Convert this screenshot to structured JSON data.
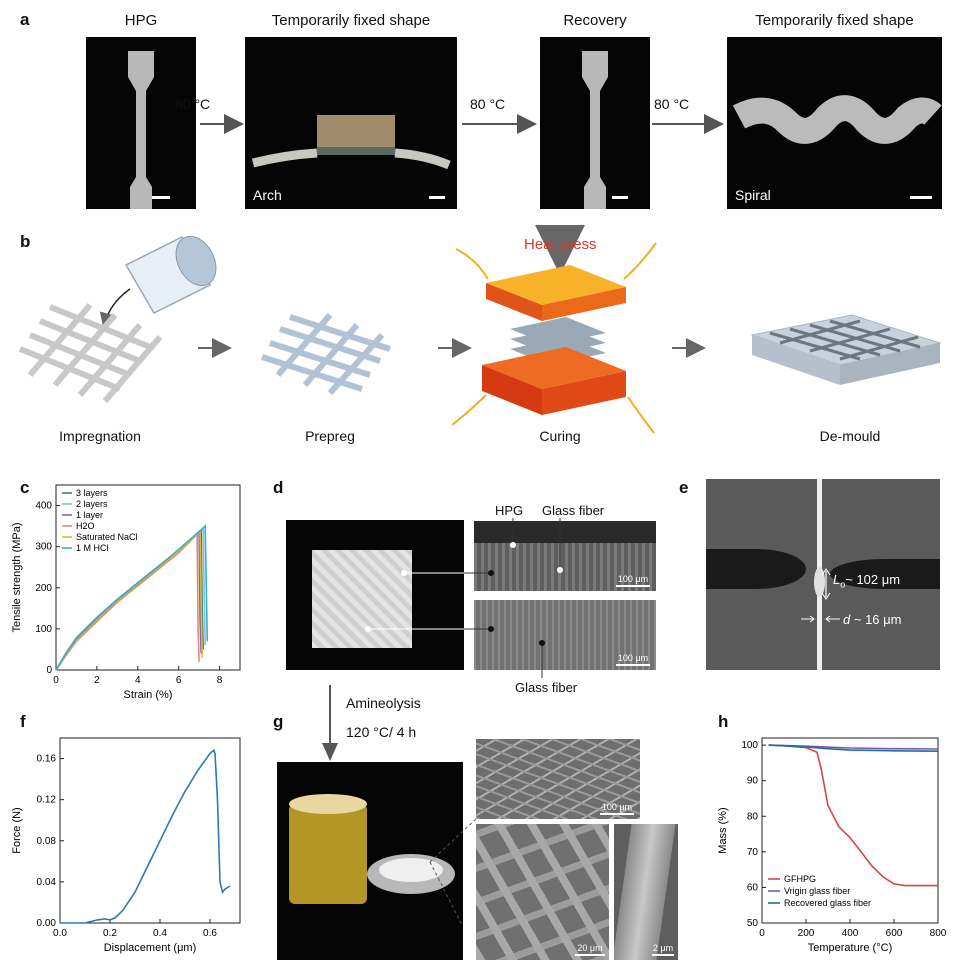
{
  "panel_a": {
    "label": "a",
    "titles": [
      "HPG",
      "Temporarily fixed shape",
      "Recovery",
      "Temporarily fixed shape"
    ],
    "arrow_temp": "80 °C",
    "captions": {
      "arch": "Arch",
      "spiral": "Spiral"
    }
  },
  "panel_b": {
    "label": "b",
    "stages": [
      "Impregnation",
      "Prepreg",
      "Curing",
      "De-mould"
    ],
    "heat_press": "Heat press"
  },
  "panel_c": {
    "label": "c",
    "xlabel": "Strain (%)",
    "ylabel": "Tensile strength (MPa)",
    "xticks": [
      "0",
      "2",
      "4",
      "6",
      "8"
    ],
    "yticks": [
      "0",
      "100",
      "200",
      "300",
      "400"
    ],
    "legend": [
      "3 layers",
      "2 layers",
      "1 layer",
      "H2O",
      "Saturated NaCl",
      "1 M HCl"
    ],
    "colors": [
      "#2e8b57",
      "#8fb8e0",
      "#7b68b8",
      "#e8896a",
      "#e0b830",
      "#36b2c8"
    ]
  },
  "panel_d": {
    "label": "d",
    "labels": {
      "hpg": "HPG",
      "glass_top": "Glass fiber",
      "glass_bottom": "Glass fiber"
    },
    "scale": "100 μm"
  },
  "panel_e": {
    "label": "e",
    "lo": "~ 102 μm",
    "lo_symbol": "L",
    "lo_sub": "o",
    "d_text": "~ 16 μm",
    "d_symbol": "d"
  },
  "panel_f": {
    "label": "f",
    "xlabel": "Displacement (μm)",
    "ylabel": "Force (N)",
    "xticks": [
      "0.0",
      "0.2",
      "0.4",
      "0.6"
    ],
    "yticks": [
      "0.00",
      "0.04",
      "0.08",
      "0.12",
      "0.16"
    ]
  },
  "panel_g": {
    "label": "g",
    "arrow_text1": "Amineolysis",
    "arrow_text2": "120 °C/ 4 h",
    "scales": [
      "100 μm",
      "20 μm",
      "2 μm"
    ]
  },
  "panel_h": {
    "label": "h",
    "xlabel": "Temperature (°C)",
    "ylabel": "Mass (%)",
    "xticks": [
      "0",
      "200",
      "400",
      "600",
      "800"
    ],
    "yticks": [
      "50",
      "60",
      "70",
      "80",
      "90",
      "100"
    ],
    "legend": [
      "GFHPG",
      "Vrigin glass fiber",
      "Recovered glass fiber"
    ],
    "colors": [
      "#d9444a",
      "#7a5aa8",
      "#1f6fa0"
    ]
  },
  "chart_data": [
    {
      "type": "line",
      "panel": "c",
      "xlabel": "Strain (%)",
      "ylabel": "Tensile strength (MPa)",
      "xlim": [
        0,
        9
      ],
      "ylim": [
        0,
        450
      ],
      "series": [
        {
          "name": "3 layers",
          "x": [
            0,
            0.5,
            1,
            2,
            3,
            4,
            5,
            6,
            7.1,
            7.15,
            7.2
          ],
          "y": [
            0,
            40,
            75,
            125,
            170,
            210,
            250,
            290,
            340,
            150,
            50
          ]
        },
        {
          "name": "2 layers",
          "x": [
            0,
            0.5,
            1,
            2,
            3,
            4,
            5,
            6,
            7.2,
            7.25,
            7.3
          ],
          "y": [
            0,
            38,
            73,
            122,
            168,
            208,
            248,
            290,
            345,
            180,
            60
          ]
        },
        {
          "name": "1 layer",
          "x": [
            0,
            0.5,
            1,
            2,
            3,
            4,
            5,
            6,
            7.0,
            7.05,
            7.1
          ],
          "y": [
            0,
            42,
            78,
            128,
            172,
            212,
            252,
            292,
            335,
            120,
            40
          ]
        },
        {
          "name": "H2O",
          "x": [
            0,
            0.5,
            1,
            2,
            3,
            4,
            5,
            6,
            6.9,
            6.95,
            7.0
          ],
          "y": [
            0,
            36,
            70,
            118,
            165,
            205,
            245,
            285,
            330,
            100,
            20
          ]
        },
        {
          "name": "Saturated NaCl",
          "x": [
            0,
            0.5,
            1,
            2,
            3,
            4,
            5,
            6,
            7.05,
            7.1,
            7.15
          ],
          "y": [
            0,
            40,
            74,
            124,
            169,
            209,
            249,
            289,
            338,
            160,
            30
          ]
        },
        {
          "name": "1 M HCl",
          "x": [
            0,
            0.5,
            1,
            2,
            3,
            4,
            5,
            6,
            7.3,
            7.35,
            7.4
          ],
          "y": [
            0,
            41,
            76,
            126,
            171,
            211,
            251,
            293,
            350,
            200,
            70
          ]
        }
      ]
    },
    {
      "type": "line",
      "panel": "f",
      "xlabel": "Displacement (μm)",
      "ylabel": "Force (N)",
      "xlim": [
        0,
        0.72
      ],
      "ylim": [
        0,
        0.18
      ],
      "series": [
        {
          "x": [
            0,
            0.1,
            0.15,
            0.18,
            0.2,
            0.22,
            0.25,
            0.3,
            0.35,
            0.4,
            0.45,
            0.5,
            0.55,
            0.6,
            0.615,
            0.62,
            0.63,
            0.64,
            0.65,
            0.66,
            0.68
          ],
          "y": [
            0,
            0,
            0.003,
            0.004,
            0.003,
            0.005,
            0.012,
            0.03,
            0.055,
            0.08,
            0.105,
            0.128,
            0.148,
            0.165,
            0.168,
            0.165,
            0.12,
            0.04,
            0.03,
            0.033,
            0.036
          ]
        }
      ]
    },
    {
      "type": "line",
      "panel": "h",
      "xlabel": "Temperature (°C)",
      "ylabel": "Mass (%)",
      "xlim": [
        0,
        800
      ],
      "ylim": [
        50,
        102
      ],
      "series": [
        {
          "name": "GFHPG",
          "x": [
            30,
            100,
            200,
            250,
            270,
            300,
            350,
            400,
            450,
            500,
            550,
            600,
            650,
            700,
            800
          ],
          "y": [
            100,
            99.8,
            99.3,
            98,
            93,
            83,
            77,
            74,
            70,
            66,
            63,
            61,
            60.5,
            60.5,
            60.5
          ]
        },
        {
          "name": "Vrigin glass fiber",
          "x": [
            30,
            200,
            400,
            600,
            800
          ],
          "y": [
            100,
            99.7,
            99.2,
            99.0,
            98.9
          ]
        },
        {
          "name": "Recovered glass fiber",
          "x": [
            30,
            200,
            300,
            400,
            600,
            800
          ],
          "y": [
            100,
            99.5,
            99.0,
            98.6,
            98.4,
            98.3
          ]
        }
      ]
    }
  ]
}
